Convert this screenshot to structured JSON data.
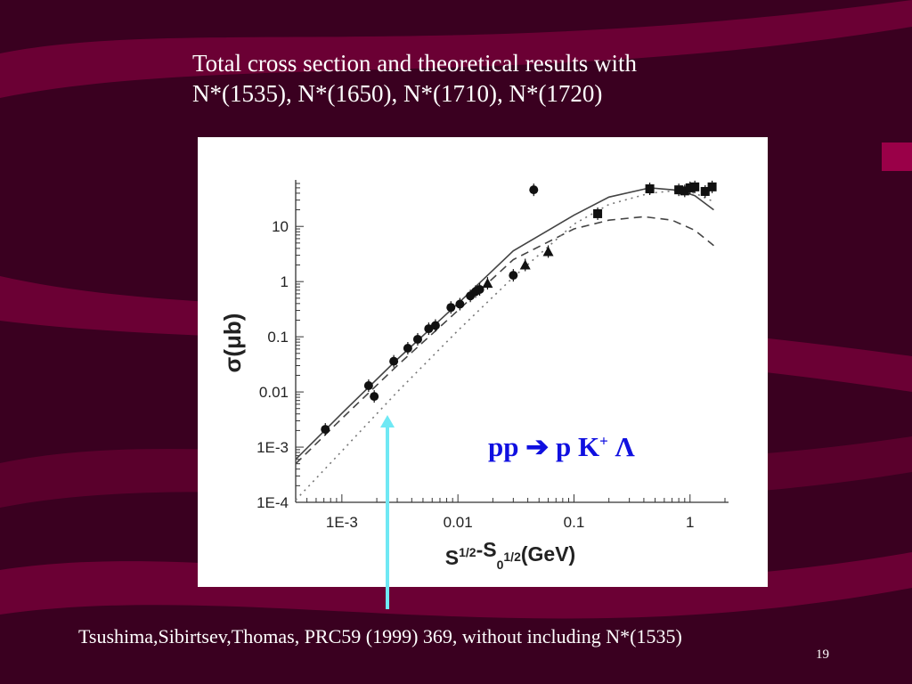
{
  "slide": {
    "title_line1": "Total cross section and theoretical results with",
    "title_line2": "N*(1535), N*(1650), N*(1710), N*(1720)",
    "reaction_pp": "pp ",
    "reaction_arrow": "➔",
    "reaction_p": " p K",
    "reaction_sup": "+",
    "reaction_lambda": " Λ",
    "citation": "Tsushima,Sibirtsev,Thomas, PRC59 (1999) 369, without including N*(1535)",
    "page_number": "19",
    "colors": {
      "background": "#3a0020",
      "ribbon": "#6b0034",
      "text": "#ffffff",
      "reaction": "#1010e0",
      "arrow": "#6fe8f4"
    }
  },
  "chart_data": {
    "type": "scatter",
    "title": "",
    "xlabel": "S^1/2-S_0^1/2(GeV)",
    "ylabel": "σ(μb)",
    "xscale": "log",
    "yscale": "log",
    "xlim": [
      0.0004,
      2
    ],
    "ylim": [
      0.0001,
      60
    ],
    "x_ticks": [
      "1E-3",
      "0.01",
      "0.1",
      "1"
    ],
    "y_ticks": [
      "1E-4",
      "1E-3",
      "0.01",
      "0.1",
      "1",
      "10"
    ],
    "y_tick_values": [
      0.0001,
      0.001,
      0.01,
      0.1,
      1,
      10
    ],
    "x_tick_values": [
      0.001,
      0.01,
      0.1,
      1
    ],
    "series": [
      {
        "marker": "circle",
        "points": [
          [
            0.00072,
            0.0021
          ],
          [
            0.0017,
            0.013
          ],
          [
            0.0019,
            0.0083
          ],
          [
            0.0028,
            0.036
          ],
          [
            0.0037,
            0.062
          ],
          [
            0.0045,
            0.09
          ],
          [
            0.0056,
            0.14
          ],
          [
            0.0064,
            0.16
          ],
          [
            0.0087,
            0.34
          ],
          [
            0.0104,
            0.39
          ],
          [
            0.0128,
            0.55
          ],
          [
            0.0142,
            0.66
          ],
          [
            0.0154,
            0.72
          ],
          [
            0.03,
            1.3
          ],
          [
            0.045,
            46
          ]
        ]
      },
      {
        "marker": "triangle",
        "points": [
          [
            0.018,
            0.93
          ],
          [
            0.038,
            2.0
          ],
          [
            0.06,
            3.5
          ]
        ]
      },
      {
        "marker": "square",
        "points": [
          [
            0.16,
            17
          ],
          [
            0.45,
            48
          ],
          [
            0.8,
            46
          ],
          [
            0.9,
            44
          ],
          [
            1.0,
            50
          ],
          [
            1.1,
            52
          ],
          [
            1.35,
            43
          ],
          [
            1.55,
            52
          ]
        ]
      }
    ],
    "curves": [
      {
        "style": "solid",
        "points": [
          [
            0.0004,
            0.0006
          ],
          [
            0.001,
            0.0041
          ],
          [
            0.003,
            0.039
          ],
          [
            0.01,
            0.4
          ],
          [
            0.03,
            3.6
          ],
          [
            0.1,
            16
          ],
          [
            0.2,
            34
          ],
          [
            0.45,
            50
          ],
          [
            0.8,
            45
          ],
          [
            1.1,
            36
          ],
          [
            1.6,
            20
          ]
        ]
      },
      {
        "style": "dashed",
        "points": [
          [
            0.0004,
            0.0005
          ],
          [
            0.001,
            0.0033
          ],
          [
            0.003,
            0.03
          ],
          [
            0.01,
            0.3
          ],
          [
            0.03,
            2.5
          ],
          [
            0.1,
            9
          ],
          [
            0.2,
            13
          ],
          [
            0.4,
            15
          ],
          [
            0.7,
            13
          ],
          [
            1.1,
            8.5
          ],
          [
            1.6,
            4.5
          ]
        ]
      },
      {
        "style": "dotted",
        "points": [
          [
            0.0004,
            0.00011
          ],
          [
            0.001,
            0.00085
          ],
          [
            0.003,
            0.01
          ],
          [
            0.01,
            0.13
          ],
          [
            0.03,
            1.2
          ],
          [
            0.1,
            11
          ],
          [
            0.2,
            25
          ],
          [
            0.45,
            40
          ],
          [
            0.8,
            45
          ],
          [
            1.1,
            40
          ],
          [
            1.6,
            28
          ]
        ]
      }
    ]
  }
}
